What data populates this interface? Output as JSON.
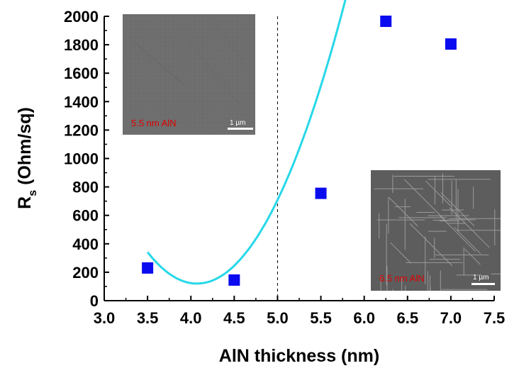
{
  "chart_data": {
    "type": "scatter",
    "xlabel": "AlN thickness (nm)",
    "ylabel_main": "R",
    "ylabel_sub": "s",
    "ylabel_rest": " (Ohm/sq)",
    "xlim": [
      3.0,
      7.5
    ],
    "ylim": [
      0,
      2000
    ],
    "xticks": [
      "3.0",
      "3.5",
      "4.0",
      "4.5",
      "5.0",
      "5.5",
      "6.0",
      "6.5",
      "7.0",
      "7.5"
    ],
    "yticks": [
      "0",
      "200",
      "400",
      "600",
      "800",
      "1000",
      "1200",
      "1400",
      "1600",
      "1800",
      "2000"
    ],
    "grid": false,
    "series": [
      {
        "marker": "square",
        "x": [
          3.5,
          4.5,
          5.5,
          6.25,
          7.0
        ],
        "y": [
          230,
          145,
          755,
          1965,
          1805
        ]
      }
    ],
    "fit_curve": {
      "kind": "quadratic",
      "x_range": [
        3.5,
        6.68
      ],
      "vertex_x": 4.07,
      "vertex_y": 120,
      "a": 680
    },
    "reference_line_x": 5.0,
    "insets": [
      {
        "label": "5.5 nm AlN",
        "scale": "1 µm",
        "texture": "smooth"
      },
      {
        "label": "6.5 nm AlN",
        "scale": "1 µm",
        "texture": "cracked"
      }
    ],
    "colors": {
      "markers": "#0b0bf0",
      "fit": "#27d8e8",
      "inset_label": "#e00000"
    }
  }
}
